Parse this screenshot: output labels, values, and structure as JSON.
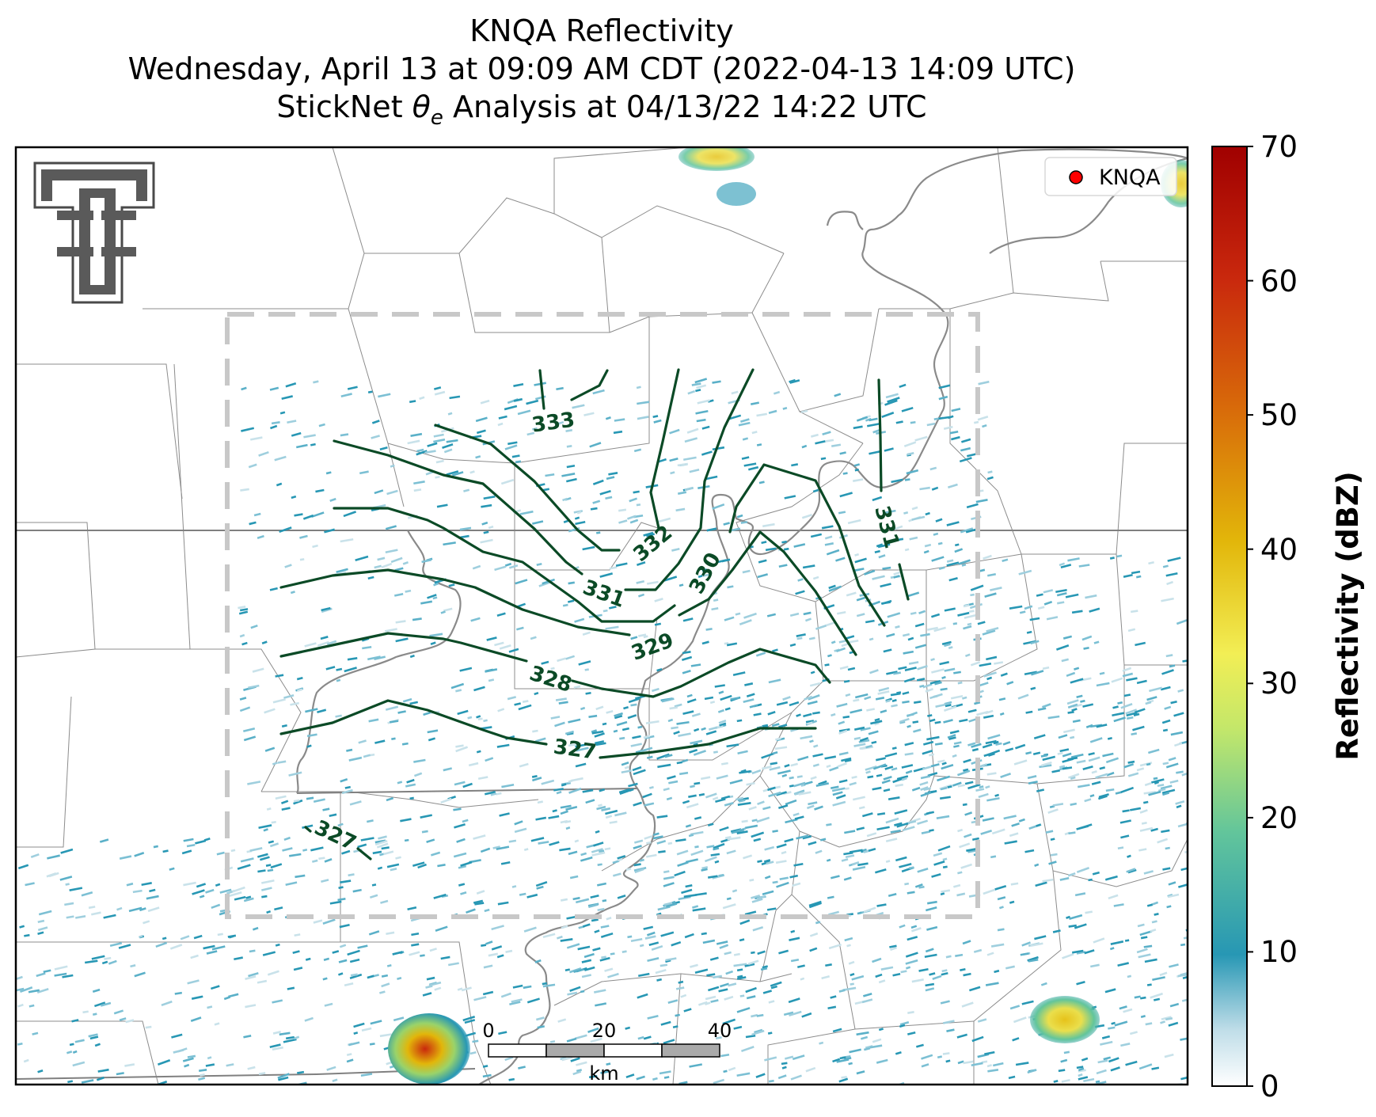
{
  "title": {
    "line1": "KNQA Reflectivity",
    "line2": "Wednesday, April 13 at 09:09 AM CDT (2022-04-13 14:09 UTC)",
    "line3_prefix": "StickNet ",
    "line3_symbol": "θ",
    "line3_sub": "e",
    "line3_suffix": " Analysis at 04/13/22 14:22 UTC"
  },
  "legend": {
    "label": "KNQA",
    "marker_color": "#ff0000"
  },
  "colorbar": {
    "label": "Reflectivity (dBZ)",
    "min": 0,
    "max": 70,
    "ticks": [
      "0",
      "10",
      "20",
      "30",
      "40",
      "50",
      "60",
      "70"
    ],
    "colormap": [
      "#ffffff",
      "#2797b4",
      "#62c59b",
      "#c3e76a",
      "#f2ee55",
      "#e2b60a",
      "#d86b0a",
      "#c9280d",
      "#a00000"
    ]
  },
  "scalebar": {
    "ticks": [
      "0",
      "20",
      "40"
    ],
    "unit": "km"
  },
  "contours": {
    "color": "#0b4a26",
    "labels": [
      "333",
      "332",
      "331",
      "330",
      "329",
      "328",
      "327",
      "327",
      "331"
    ]
  },
  "map": {
    "analysis_box_color": "#c8c8c8",
    "river_color": "#8a8a8a",
    "boundary_color": "#8c8c8c"
  },
  "logo": {
    "name": "texas-tech-double-t"
  }
}
